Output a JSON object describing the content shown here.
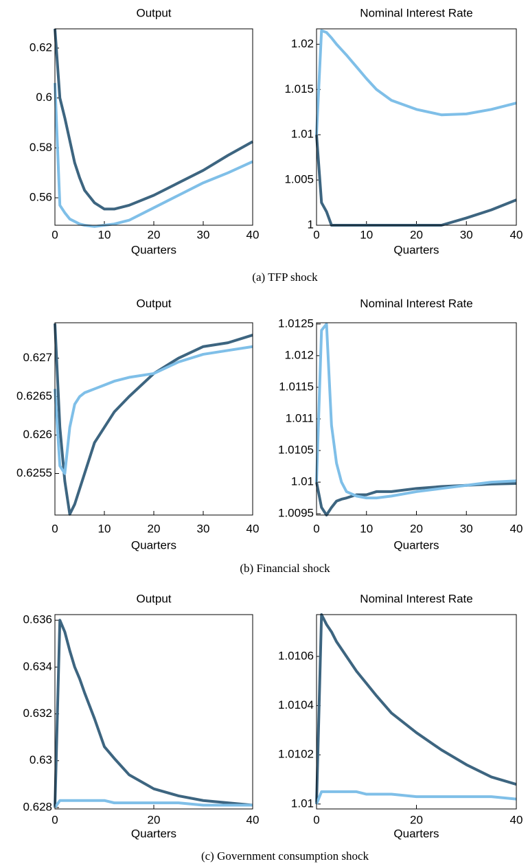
{
  "captions": [
    "(a)  TFP shock",
    "(b) Financial shock",
    "(c)  Government consumption shock"
  ],
  "chart_data": [
    {
      "type": "line",
      "title": "Output",
      "xlabel": "Quarters",
      "x": [
        0,
        1,
        2,
        3,
        4,
        5,
        6,
        8,
        10,
        12,
        15,
        20,
        25,
        30,
        35,
        40
      ],
      "xlim": [
        0,
        40
      ],
      "xticks": [
        0,
        10,
        20,
        30,
        40
      ],
      "ylim": [
        0.549,
        0.6277
      ],
      "yticks": [
        0.56,
        0.58,
        0.6,
        0.62
      ],
      "series": [
        {
          "color": "#3d6580",
          "values": [
            0.6277,
            0.6,
            0.592,
            0.583,
            0.574,
            0.568,
            0.563,
            0.558,
            0.5555,
            0.5555,
            0.557,
            0.561,
            0.566,
            0.571,
            0.577,
            0.5825
          ]
        },
        {
          "color": "#7fbfe8",
          "values": [
            0.606,
            0.557,
            0.554,
            0.5515,
            0.5505,
            0.5495,
            0.549,
            0.5485,
            0.549,
            0.5495,
            0.551,
            0.556,
            0.561,
            0.566,
            0.57,
            0.5745
          ]
        }
      ]
    },
    {
      "type": "line",
      "title": "Nominal Interest Rate",
      "xlabel": "Quarters",
      "x": [
        0,
        1,
        2,
        3,
        4,
        5,
        6,
        8,
        10,
        12,
        15,
        20,
        25,
        30,
        35,
        40
      ],
      "xlim": [
        0,
        40
      ],
      "xticks": [
        0,
        10,
        20,
        30,
        40
      ],
      "ylim": [
        1,
        1.0217
      ],
      "yticks": [
        1,
        1.005,
        1.01,
        1.015,
        1.02
      ],
      "series": [
        {
          "color": "#3d6580",
          "values": [
            1.01,
            1.0025,
            1.0015,
            1,
            1,
            1,
            1,
            1,
            1,
            1,
            1,
            1,
            1,
            1.0008,
            1.0017,
            1.0028
          ]
        },
        {
          "color": "#7fbfe8",
          "values": [
            1.01,
            1.0215,
            1.0213,
            1.0207,
            1.02,
            1.0194,
            1.0188,
            1.0175,
            1.0162,
            1.015,
            1.0138,
            1.0128,
            1.0122,
            1.0123,
            1.0128,
            1.0135
          ]
        }
      ]
    },
    {
      "type": "line",
      "title": "Output",
      "xlabel": "Quarters",
      "x": [
        0,
        1,
        2,
        3,
        4,
        5,
        6,
        8,
        10,
        12,
        15,
        20,
        25,
        30,
        35,
        40
      ],
      "xlim": [
        0,
        40
      ],
      "xticks": [
        0,
        10,
        20,
        30,
        40
      ],
      "ylim": [
        0.62496,
        0.62746
      ],
      "yticks": [
        0.6255,
        0.626,
        0.6265,
        0.627
      ],
      "series": [
        {
          "color": "#3d6580",
          "values": [
            0.62745,
            0.6261,
            0.6254,
            0.62497,
            0.6251,
            0.6253,
            0.6255,
            0.6259,
            0.6261,
            0.6263,
            0.6265,
            0.6268,
            0.627,
            0.62715,
            0.6272,
            0.6273
          ]
        },
        {
          "color": "#7fbfe8",
          "values": [
            0.6266,
            0.6256,
            0.6255,
            0.6261,
            0.6264,
            0.6265,
            0.62655,
            0.6266,
            0.62665,
            0.6267,
            0.62675,
            0.6268,
            0.62695,
            0.62705,
            0.6271,
            0.62715
          ]
        }
      ]
    },
    {
      "type": "line",
      "title": "Nominal Interest Rate",
      "xlabel": "Quarters",
      "x": [
        0,
        1,
        2,
        3,
        4,
        5,
        6,
        8,
        10,
        12,
        15,
        20,
        25,
        30,
        35,
        40
      ],
      "xlim": [
        0,
        40
      ],
      "xticks": [
        0,
        10,
        20,
        30,
        40
      ],
      "ylim": [
        1.00948,
        1.01252
      ],
      "yticks": [
        1.0095,
        1.01,
        1.0105,
        1.011,
        1.0115,
        1.012,
        1.0125
      ],
      "series": [
        {
          "color": "#3d6580",
          "values": [
            1.01,
            1.0096,
            1.00948,
            1.0096,
            1.0097,
            1.00973,
            1.00975,
            1.0098,
            1.0098,
            1.00985,
            1.00985,
            1.0099,
            1.00993,
            1.00995,
            1.00997,
            1.00998
          ]
        },
        {
          "color": "#7fbfe8",
          "values": [
            1.01,
            1.0124,
            1.0125,
            1.0109,
            1.0103,
            1.01,
            1.00985,
            1.00978,
            1.00975,
            1.00975,
            1.00978,
            1.00985,
            1.0099,
            1.00995,
            1.01,
            1.01002
          ]
        }
      ]
    },
    {
      "type": "line",
      "title": "Output",
      "xlabel": "Quarters",
      "x": [
        0,
        1,
        2,
        3,
        4,
        5,
        6,
        8,
        10,
        12,
        15,
        20,
        25,
        30,
        35,
        40
      ],
      "xlim": [
        0,
        40
      ],
      "xticks": [
        0,
        20,
        40
      ],
      "ylim": [
        0.62794,
        0.63624
      ],
      "yticks": [
        0.628,
        0.63,
        0.632,
        0.634,
        0.636
      ],
      "series": [
        {
          "color": "#3d6580",
          "values": [
            0.628,
            0.636,
            0.6355,
            0.6347,
            0.634,
            0.6335,
            0.6329,
            0.6318,
            0.6306,
            0.6301,
            0.6294,
            0.6288,
            0.6285,
            0.6283,
            0.6282,
            0.6281
          ]
        },
        {
          "color": "#7fbfe8",
          "values": [
            0.628,
            0.6283,
            0.6283,
            0.6283,
            0.6283,
            0.6283,
            0.6283,
            0.6283,
            0.6283,
            0.6282,
            0.6282,
            0.6282,
            0.6282,
            0.6281,
            0.6281,
            0.6281
          ]
        }
      ]
    },
    {
      "type": "line",
      "title": "Nominal Interest Rate",
      "xlabel": "Quarters",
      "x": [
        0,
        1,
        2,
        3,
        4,
        5,
        6,
        8,
        10,
        12,
        15,
        20,
        25,
        30,
        35,
        40
      ],
      "xlim": [
        0,
        40
      ],
      "xticks": [
        0,
        20,
        40
      ],
      "ylim": [
        1.00998,
        1.01077
      ],
      "yticks": [
        1.01,
        1.0102,
        1.0104,
        1.0106
      ],
      "series": [
        {
          "color": "#3d6580",
          "values": [
            1.01,
            1.01077,
            1.01073,
            1.0107,
            1.01066,
            1.01063,
            1.0106,
            1.01054,
            1.01049,
            1.01044,
            1.01037,
            1.01029,
            1.01022,
            1.01016,
            1.01011,
            1.01008
          ]
        },
        {
          "color": "#7fbfe8",
          "values": [
            1.01,
            1.01005,
            1.01005,
            1.01005,
            1.01005,
            1.01005,
            1.01005,
            1.01005,
            1.01004,
            1.01004,
            1.01004,
            1.01003,
            1.01003,
            1.01003,
            1.01003,
            1.01002
          ]
        }
      ]
    }
  ]
}
